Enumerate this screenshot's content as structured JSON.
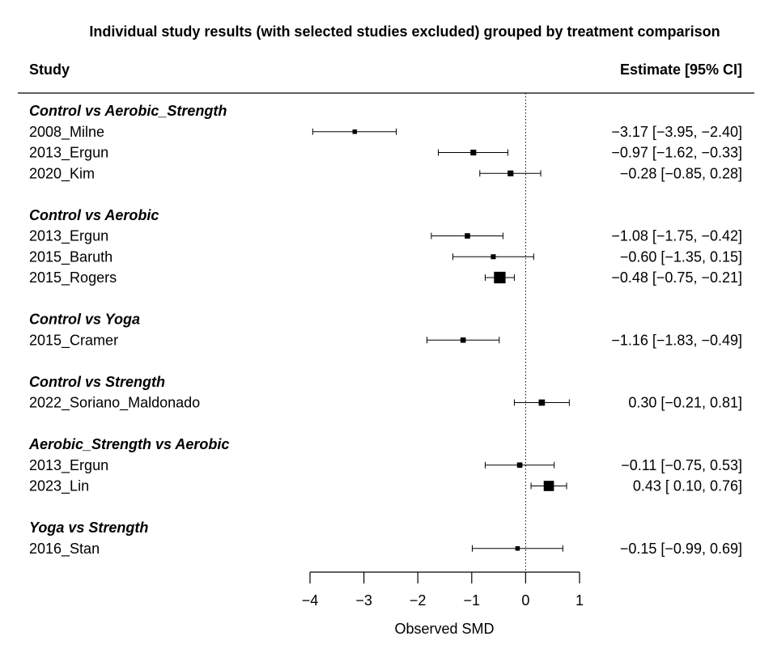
{
  "chart_data": {
    "type": "forest",
    "title": "Individual study results (with selected studies excluded) grouped by treatment comparison",
    "column_headers": {
      "study": "Study",
      "estimate": "Estimate [95% CI]"
    },
    "xlabel": "Observed  SMD",
    "xlim": [
      -4,
      1
    ],
    "x_ticks": [
      -4,
      -3,
      -2,
      -1,
      0,
      1
    ],
    "x_tick_labels": [
      "−4",
      "−3",
      "−2",
      "−1",
      "0",
      "1"
    ],
    "reference_line": 0,
    "groups": [
      {
        "name": "Control vs Aerobic_Strength",
        "studies": [
          {
            "study": "2008_Milne",
            "estimate": -3.17,
            "lower": -3.95,
            "upper": -2.4,
            "label": "−3.17 [−3.95, −2.40]",
            "weight": 1
          },
          {
            "study": "2013_Ergun",
            "estimate": -0.97,
            "lower": -1.62,
            "upper": -0.33,
            "label": "−0.97 [−1.62, −0.33]",
            "weight": 1.3
          },
          {
            "study": "2020_Kim",
            "estimate": -0.28,
            "lower": -0.85,
            "upper": 0.28,
            "label": "−0.28 [−0.85,  0.28]",
            "weight": 1.3
          }
        ]
      },
      {
        "name": "Control vs Aerobic",
        "studies": [
          {
            "study": "2013_Ergun",
            "estimate": -1.08,
            "lower": -1.75,
            "upper": -0.42,
            "label": "−1.08 [−1.75, −0.42]",
            "weight": 1.2
          },
          {
            "study": "2015_Baruth",
            "estimate": -0.6,
            "lower": -1.35,
            "upper": 0.15,
            "label": "−0.60 [−1.35,  0.15]",
            "weight": 1.1
          },
          {
            "study": "2015_Rogers",
            "estimate": -0.48,
            "lower": -0.75,
            "upper": -0.21,
            "label": "−0.48 [−0.75, −0.21]",
            "weight": 2.6
          }
        ]
      },
      {
        "name": "Control vs Yoga",
        "studies": [
          {
            "study": "2015_Cramer",
            "estimate": -1.16,
            "lower": -1.83,
            "upper": -0.49,
            "label": "−1.16 [−1.83, −0.49]",
            "weight": 1.2
          }
        ]
      },
      {
        "name": "Control vs Strength",
        "studies": [
          {
            "study": "2022_Soriano_Maldonado",
            "estimate": 0.3,
            "lower": -0.21,
            "upper": 0.81,
            "label": "0.30 [−0.21,  0.81]",
            "weight": 1.4
          }
        ]
      },
      {
        "name": "Aerobic_Strength vs Aerobic",
        "studies": [
          {
            "study": "2013_Ergun",
            "estimate": -0.11,
            "lower": -0.75,
            "upper": 0.53,
            "label": "−0.11 [−0.75,  0.53]",
            "weight": 1.2
          },
          {
            "study": "2023_Lin",
            "estimate": 0.43,
            "lower": 0.1,
            "upper": 0.76,
            "label": "0.43 [ 0.10,  0.76]",
            "weight": 2.3
          }
        ]
      },
      {
        "name": "Yoga vs Strength",
        "studies": [
          {
            "study": "2016_Stan",
            "estimate": -0.15,
            "lower": -0.99,
            "upper": 0.69,
            "label": "−0.15 [−0.99,  0.69]",
            "weight": 1
          }
        ]
      }
    ]
  }
}
